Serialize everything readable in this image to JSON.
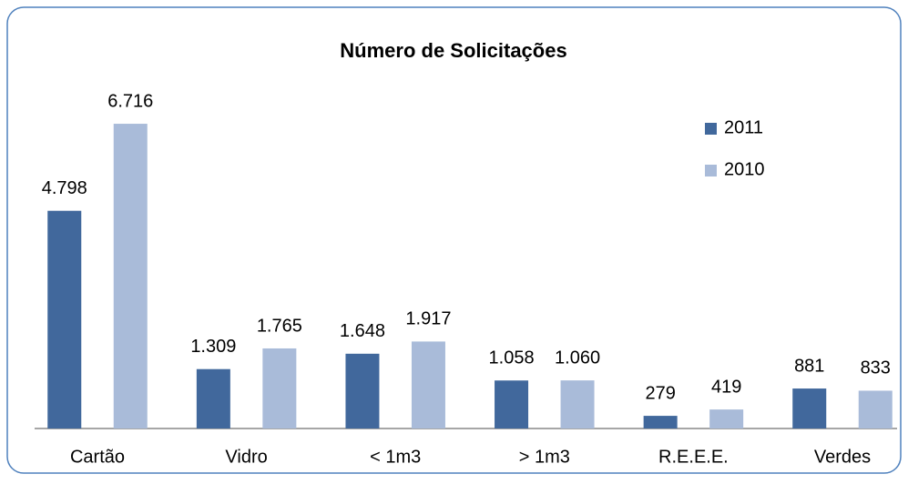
{
  "chart_data": {
    "type": "bar",
    "title": "Número de Solicitações",
    "categories": [
      "Cartão",
      "Vidro",
      "< 1m3",
      "> 1m3",
      "R.E.E.E.",
      "Verdes"
    ],
    "series": [
      {
        "name": "2011",
        "color": "#41689c",
        "values": [
          4798,
          1309,
          1648,
          1058,
          279,
          881
        ],
        "value_labels": [
          "4.798",
          "1.309",
          "1.648",
          "1.058",
          "279",
          "881"
        ]
      },
      {
        "name": "2010",
        "color": "#a9bbd9",
        "values": [
          6716,
          1765,
          1917,
          1060,
          419,
          833
        ],
        "value_labels": [
          "6.716",
          "1.765",
          "1.917",
          "1.060",
          "419",
          "833"
        ]
      }
    ],
    "ylim": [
      0,
      8000
    ],
    "legend": "top-right"
  }
}
